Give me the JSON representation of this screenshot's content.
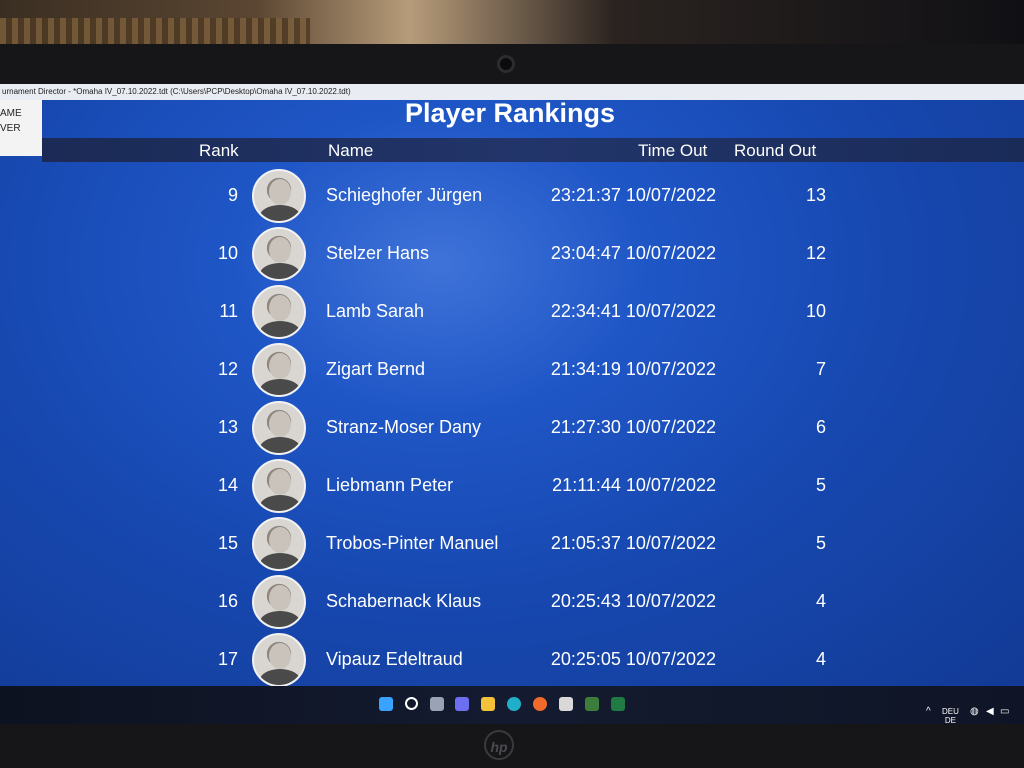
{
  "window": {
    "title": "urnament Director - *Omaha IV_07.10.2022.tdt (C:\\Users\\PCP\\Desktop\\Omaha IV_07.10.2022.tdt)",
    "menu_items": [
      "AME",
      "VER"
    ]
  },
  "page": {
    "title": "Player Rankings"
  },
  "table": {
    "columns": {
      "rank": "Rank",
      "name": "Name",
      "time_out": "Time Out",
      "round_out": "Round Out"
    },
    "rows": [
      {
        "rank": "9",
        "name": "Schieghofer Jürgen",
        "time_out": "23:21:37 10/07/2022",
        "round_out": "13"
      },
      {
        "rank": "10",
        "name": "Stelzer Hans",
        "time_out": "23:04:47 10/07/2022",
        "round_out": "12"
      },
      {
        "rank": "11",
        "name": "Lamb Sarah",
        "time_out": "22:34:41 10/07/2022",
        "round_out": "10"
      },
      {
        "rank": "12",
        "name": "Zigart Bernd",
        "time_out": "21:34:19 10/07/2022",
        "round_out": "7"
      },
      {
        "rank": "13",
        "name": "Stranz-Moser Dany",
        "time_out": "21:27:30 10/07/2022",
        "round_out": "6"
      },
      {
        "rank": "14",
        "name": "Liebmann Peter",
        "time_out": "21:11:44 10/07/2022",
        "round_out": "5"
      },
      {
        "rank": "15",
        "name": "Trobos-Pinter Manuel",
        "time_out": "21:05:37 10/07/2022",
        "round_out": "5"
      },
      {
        "rank": "16",
        "name": "Schabernack Klaus",
        "time_out": "20:25:43 10/07/2022",
        "round_out": "4"
      },
      {
        "rank": "17",
        "name": "Vipauz Edeltraud",
        "time_out": "20:25:05 10/07/2022",
        "round_out": "4"
      }
    ]
  },
  "taskbar": {
    "icons": [
      "windows-start-icon",
      "search-icon",
      "task-view-icon",
      "chat-icon",
      "file-explorer-icon",
      "edge-icon",
      "firefox-icon",
      "app-icon",
      "tournament-director-icon",
      "excel-icon"
    ],
    "tray_lang_top": "DEU",
    "tray_lang_bottom": "DE"
  },
  "laptop": {
    "brand": "hp"
  },
  "colors": {
    "screen_blue": "#1f56c6",
    "header_bar": "#1b2a55",
    "taskbar": "#141b30"
  }
}
